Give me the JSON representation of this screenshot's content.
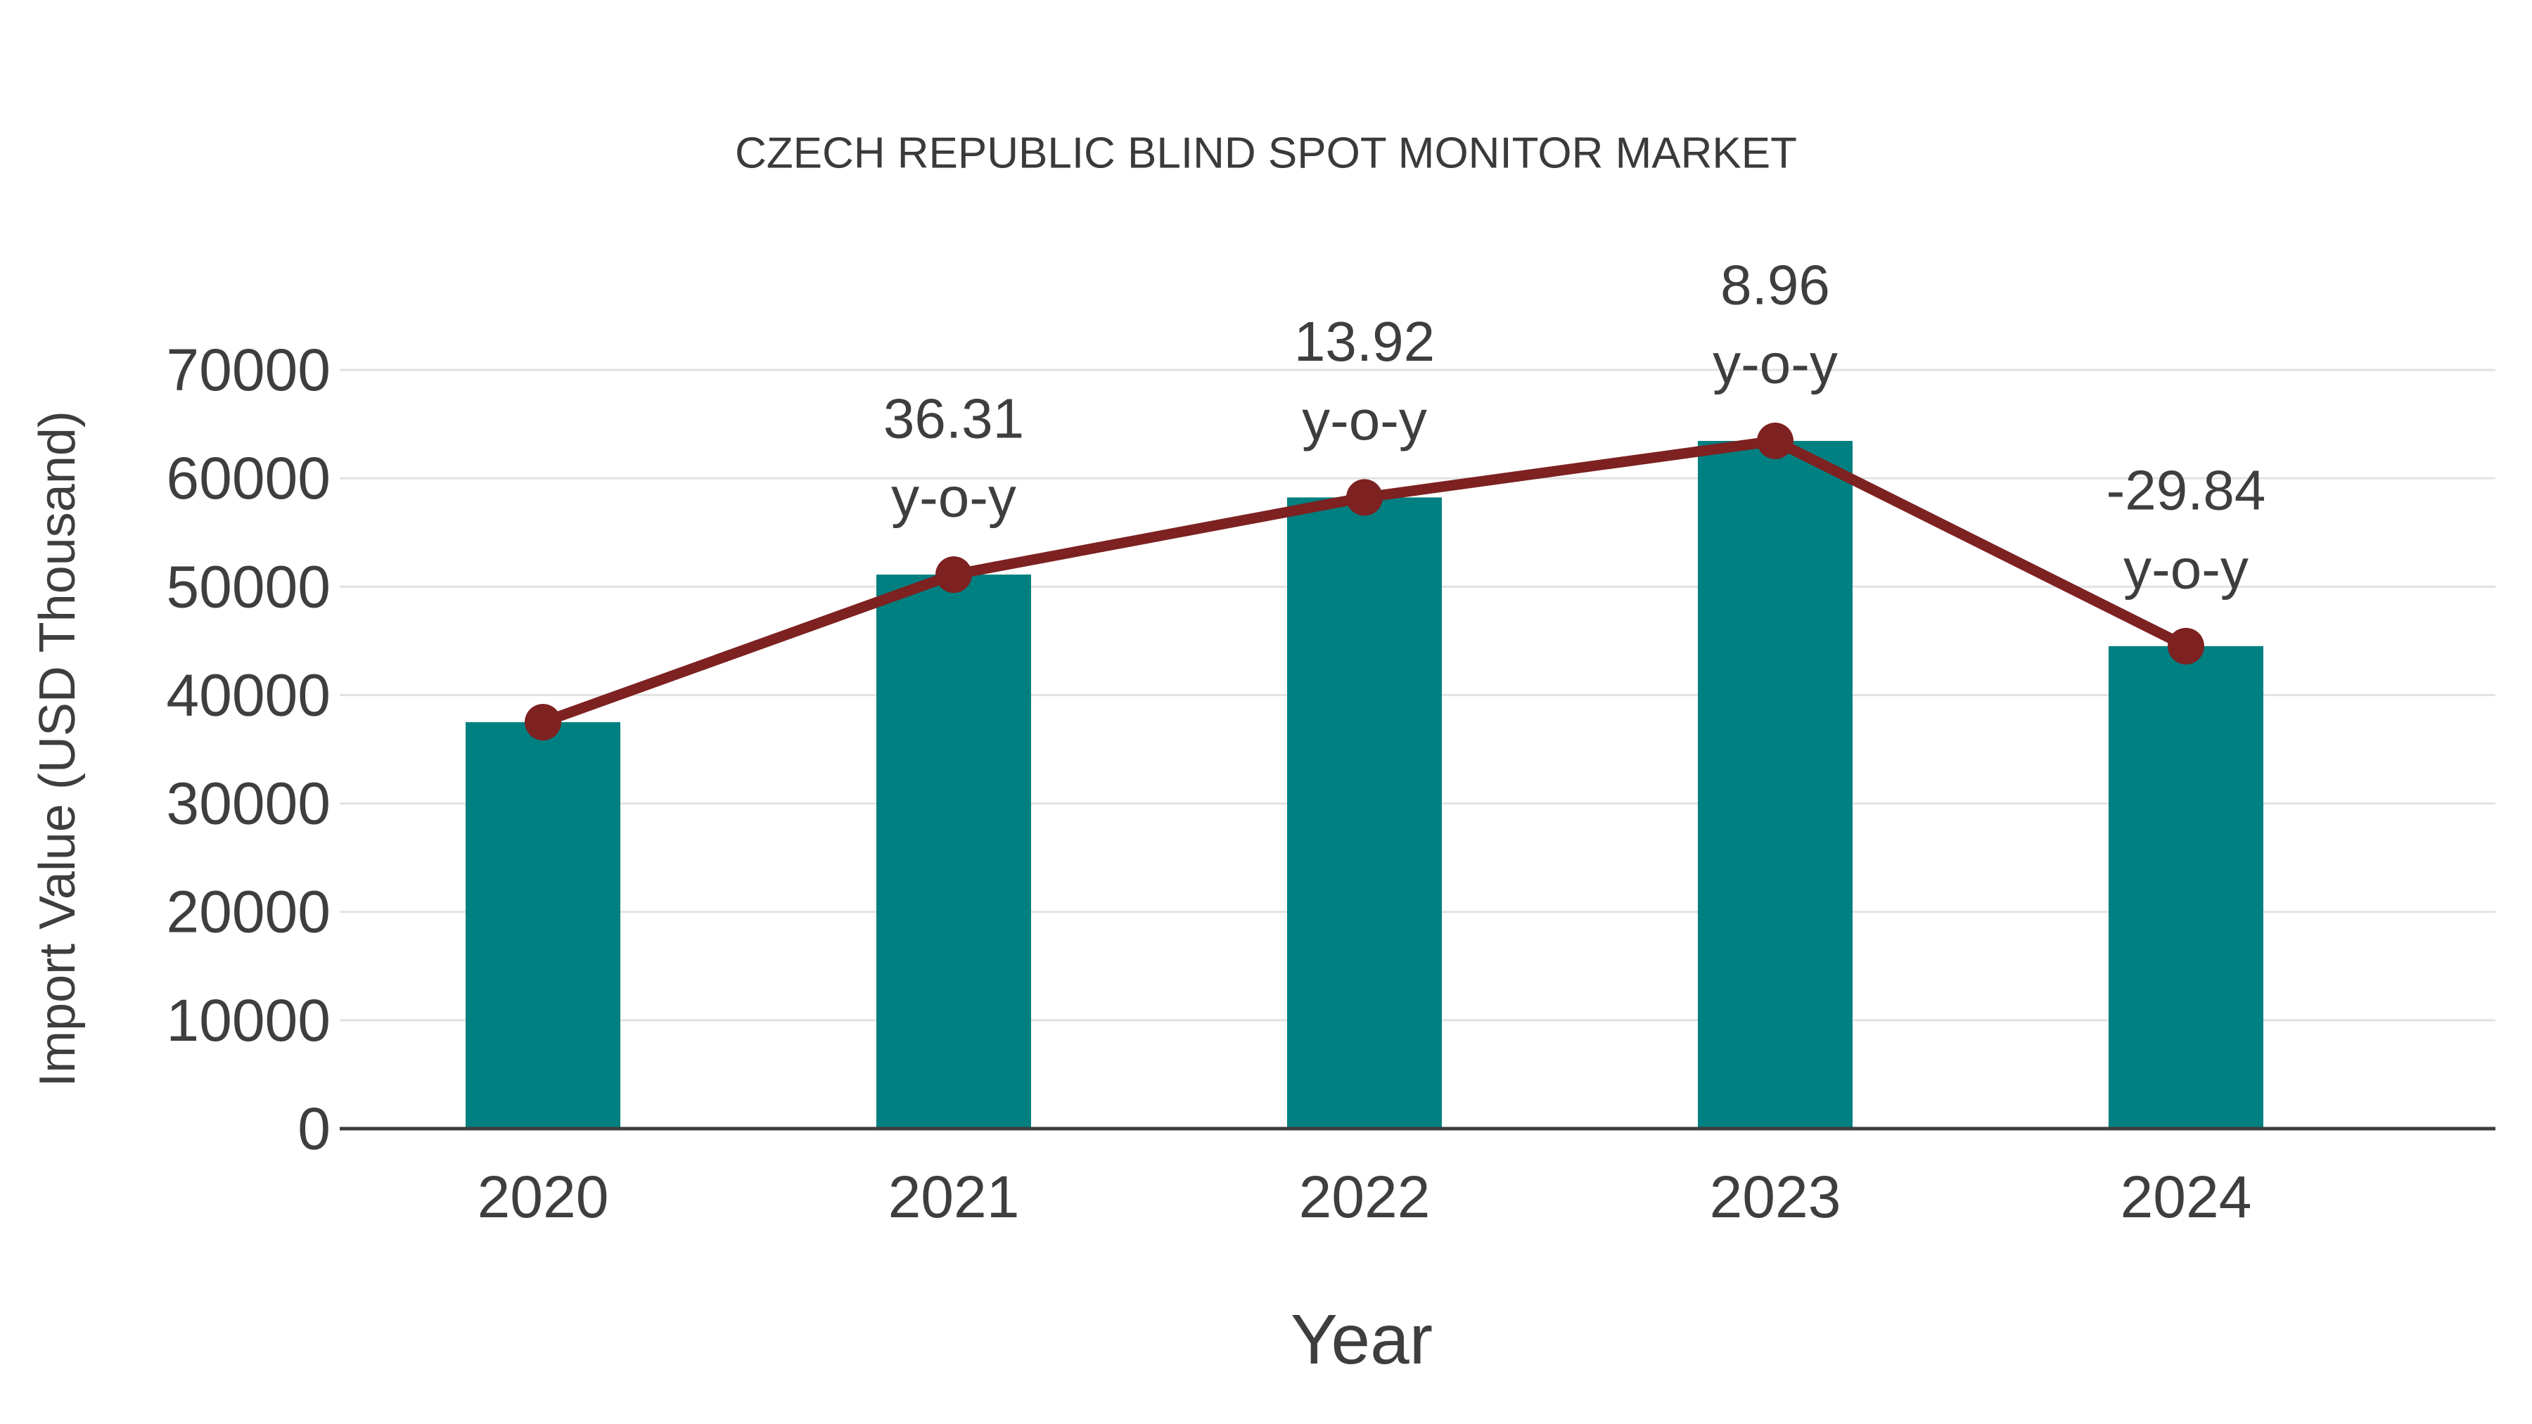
{
  "chart_data": {
    "type": "bar",
    "title": "CZECH REPUBLIC BLIND SPOT MONITOR MARKET",
    "xlabel": "Year",
    "ylabel": "Import Value (USD Thousand)",
    "categories": [
      "2020",
      "2021",
      "2022",
      "2023",
      "2024"
    ],
    "series": [
      {
        "name": "Import Value bars",
        "type": "bar",
        "values": [
          37500,
          51116,
          58232,
          63449,
          44516
        ],
        "color": "#008080"
      },
      {
        "name": "Import Value trend line",
        "type": "line",
        "values": [
          37500,
          51116,
          58232,
          63449,
          44516
        ],
        "color": "#7d2121"
      }
    ],
    "yoy_annotations": [
      {
        "category": "2021",
        "value_text": "36.31",
        "suffix_text": "y-o-y"
      },
      {
        "category": "2022",
        "value_text": "13.92",
        "suffix_text": "y-o-y"
      },
      {
        "category": "2023",
        "value_text": "8.96",
        "suffix_text": "y-o-y"
      },
      {
        "category": "2024",
        "value_text": "-29.84",
        "suffix_text": "y-o-y"
      }
    ],
    "ylim": [
      0,
      70000
    ],
    "ytick_step": 10000,
    "ytick_labels": [
      "0",
      "10000",
      "20000",
      "30000",
      "40000",
      "50000",
      "60000",
      "70000"
    ],
    "grid": true,
    "legend_position": "none",
    "colors": {
      "bar": "#008080",
      "line": "#7d2121",
      "marker": "#7d2121",
      "text": "#3e3e3e",
      "title": "#3a3a3a",
      "gridline": "#e2e2e2",
      "axisline": "#3d3d3d",
      "background": "#ffffff"
    }
  }
}
